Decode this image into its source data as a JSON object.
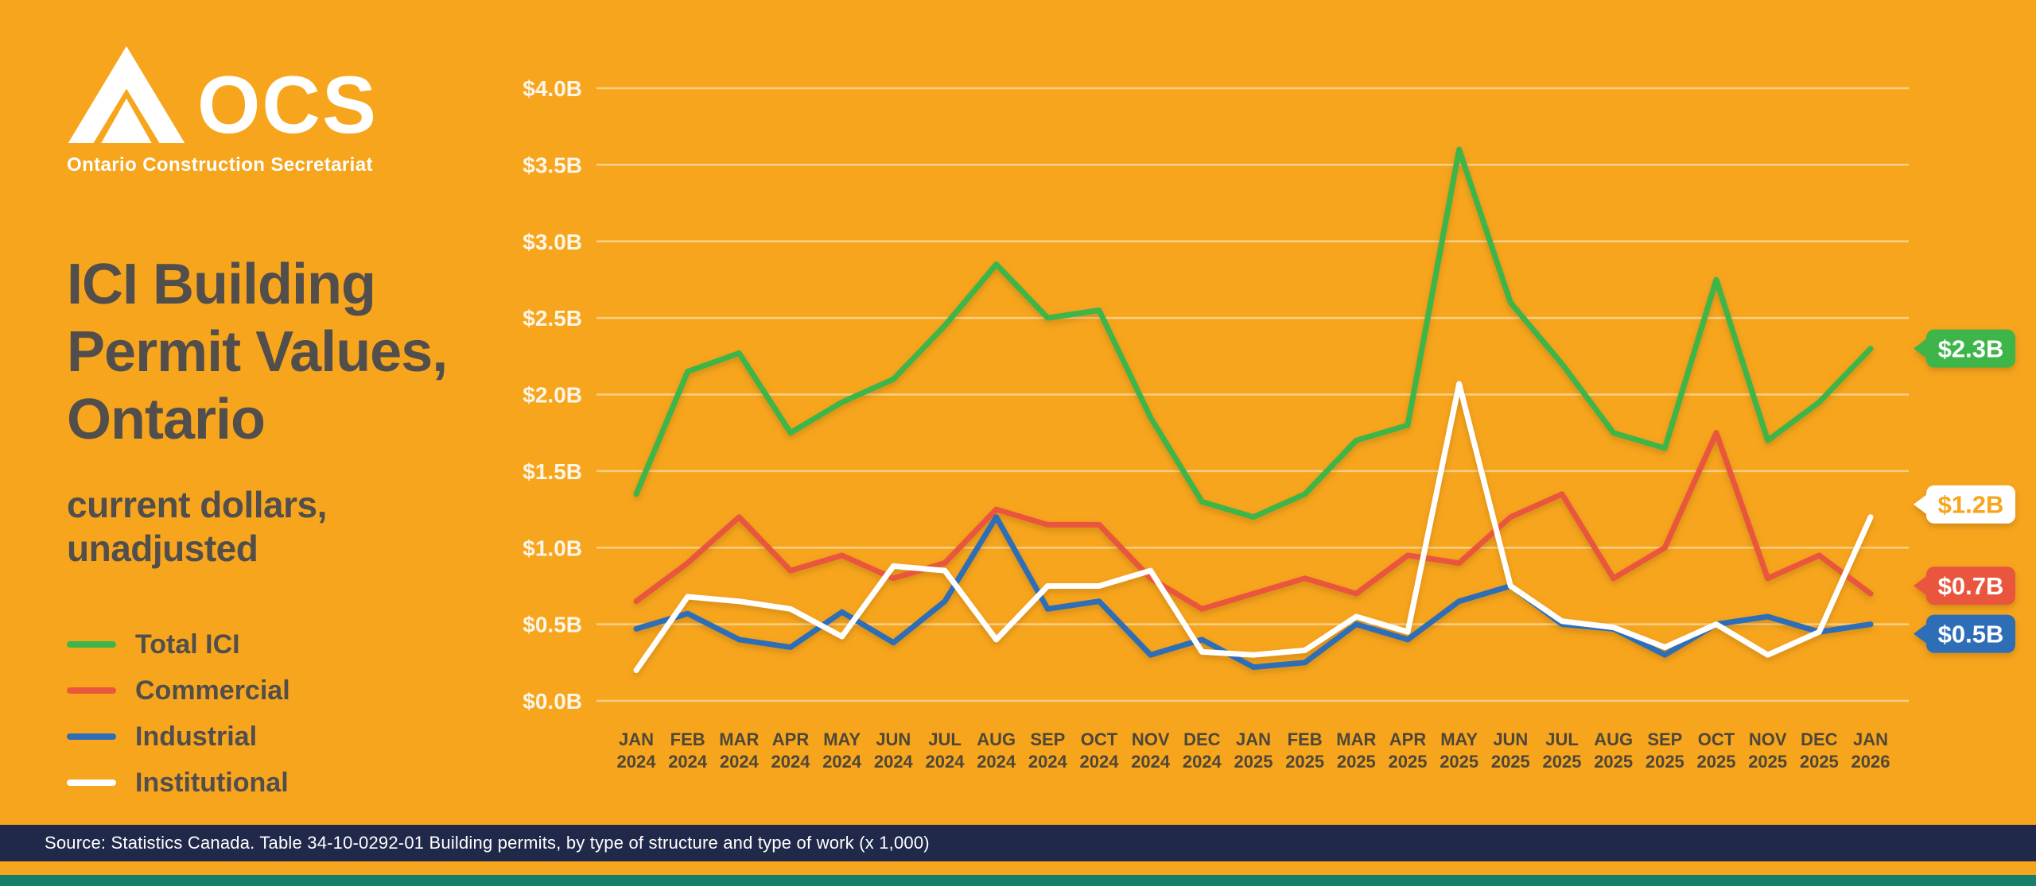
{
  "brand": {
    "logo_text": "OCS",
    "tagline": "Ontario Construction Secretariat"
  },
  "title": {
    "lines": [
      "ICI Building",
      "Permit Values,",
      "Ontario"
    ],
    "subtitle_lines": [
      "current dollars,",
      "unadjusted"
    ]
  },
  "legend": [
    {
      "label": "Total ICI",
      "color": "#3CB54A"
    },
    {
      "label": "Commercial",
      "color": "#E9573D"
    },
    {
      "label": "Industrial",
      "color": "#2F6EB6"
    },
    {
      "label": "Institutional",
      "color": "#FFFFFF"
    }
  ],
  "footer": {
    "source": "Source: Statistics Canada. Table 34-10-0292-01  Building permits, by type of structure and type of work (x 1,000)"
  },
  "colors": {
    "background": "#F7A51D",
    "title_text": "#514E4C",
    "axis_text": "#4E4738",
    "ytick_text": "#FDF6E8",
    "footer_bar": "#20294A",
    "bottom_strip": "#177E6C"
  },
  "chart_data": {
    "type": "line",
    "title": "ICI Building Permit Values, Ontario",
    "subtitle": "current dollars, unadjusted",
    "xlabel": "",
    "ylabel": "",
    "ylim": [
      0,
      4.0
    ],
    "grid": true,
    "legend_position": "left",
    "yticks": [
      "$0.0B",
      "$0.5B",
      "$1.0B",
      "$1.5B",
      "$2.0B",
      "$2.5B",
      "$3.0B",
      "$3.5B",
      "$4.0B"
    ],
    "x": [
      "JAN 2024",
      "FEB 2024",
      "MAR 2024",
      "APR 2024",
      "MAY 2024",
      "JUN 2024",
      "JUL 2024",
      "AUG 2024",
      "SEP 2024",
      "OCT 2024",
      "NOV 2024",
      "DEC 2024",
      "JAN 2025",
      "FEB 2025",
      "MAR 2025",
      "APR 2025",
      "MAY 2025",
      "JUN 2025",
      "JUL 2025",
      "AUG 2025",
      "SEP 2025",
      "OCT 2025",
      "NOV 2025",
      "DEC 2025",
      "JAN 2026"
    ],
    "series": [
      {
        "name": "Total ICI",
        "color": "#3CB54A",
        "values": [
          1.35,
          2.15,
          2.27,
          1.75,
          1.95,
          2.1,
          2.45,
          2.85,
          2.5,
          2.55,
          1.85,
          1.3,
          1.2,
          1.35,
          1.7,
          1.8,
          3.6,
          2.6,
          2.2,
          1.75,
          1.65,
          2.75,
          1.7,
          1.95,
          2.3
        ]
      },
      {
        "name": "Commercial",
        "color": "#E9573D",
        "values": [
          0.65,
          0.9,
          1.2,
          0.85,
          0.95,
          0.8,
          0.9,
          1.25,
          1.15,
          1.15,
          0.8,
          0.6,
          0.7,
          0.8,
          0.7,
          0.95,
          0.9,
          1.2,
          1.35,
          0.8,
          1.0,
          1.75,
          0.8,
          0.95,
          0.7
        ]
      },
      {
        "name": "Industrial",
        "color": "#2F6EB6",
        "values": [
          0.47,
          0.57,
          0.4,
          0.35,
          0.58,
          0.38,
          0.65,
          1.2,
          0.6,
          0.65,
          0.3,
          0.4,
          0.22,
          0.25,
          0.5,
          0.4,
          0.65,
          0.75,
          0.5,
          0.47,
          0.3,
          0.5,
          0.55,
          0.45,
          0.5
        ]
      },
      {
        "name": "Institutional",
        "color": "#FFFFFF",
        "values": [
          0.2,
          0.68,
          0.65,
          0.6,
          0.42,
          0.88,
          0.85,
          0.4,
          0.75,
          0.75,
          0.85,
          0.32,
          0.3,
          0.33,
          0.55,
          0.45,
          2.07,
          0.75,
          0.52,
          0.48,
          0.35,
          0.5,
          0.3,
          0.45,
          1.2
        ]
      }
    ],
    "end_labels": [
      {
        "series": "Total ICI",
        "text": "$2.3B",
        "value": 2.3,
        "bg": "#3CB54A",
        "fg": "#FFFFFF"
      },
      {
        "series": "Institutional",
        "text": "$1.2B",
        "value": 1.2,
        "bg": "#FFFFFF",
        "fg": "#F7A51D"
      },
      {
        "series": "Commercial",
        "text": "$0.7B",
        "value": 0.7,
        "bg": "#E9573D",
        "fg": "#FFFFFF"
      },
      {
        "series": "Industrial",
        "text": "$0.5B",
        "value": 0.5,
        "bg": "#2F6EB6",
        "fg": "#FFFFFF"
      }
    ]
  }
}
